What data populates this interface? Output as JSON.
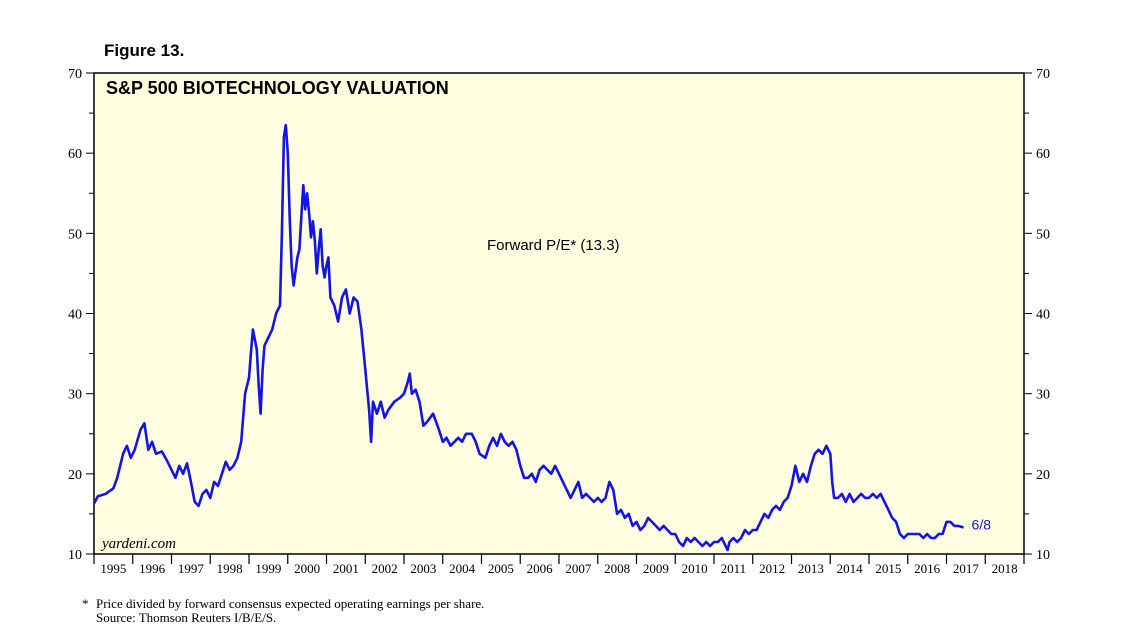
{
  "figure_label": "Figure 13.",
  "chart_data": {
    "type": "line",
    "title": "S&P 500 BIOTECHNOLOGY VALUATION",
    "series_label": "Forward P/E* (13.3)",
    "last_label": "6/8",
    "watermark": "yardeni.com",
    "ylim": [
      10,
      70
    ],
    "yticks": [
      10,
      20,
      30,
      40,
      50,
      60,
      70
    ],
    "ytick_labels": [
      "10",
      "20",
      "30",
      "40",
      "50",
      "60",
      "70"
    ],
    "xlim": [
      1995,
      2019
    ],
    "xtick_labels": [
      "1995",
      "1996",
      "1997",
      "1998",
      "1999",
      "2000",
      "2001",
      "2002",
      "2003",
      "2004",
      "2005",
      "2006",
      "2007",
      "2008",
      "2009",
      "2010",
      "2011",
      "2012",
      "2013",
      "2014",
      "2015",
      "2016",
      "2017",
      "2018"
    ],
    "colors": {
      "plot_bg": "#fffee0",
      "line": "#1414e6",
      "axis": "#000000"
    },
    "series": [
      {
        "name": "Forward P/E",
        "points": [
          [
            1995.0,
            16.3
          ],
          [
            1995.1,
            17.2
          ],
          [
            1995.3,
            17.5
          ],
          [
            1995.5,
            18.2
          ],
          [
            1995.6,
            19.5
          ],
          [
            1995.75,
            22.5
          ],
          [
            1995.85,
            23.5
          ],
          [
            1995.95,
            22.0
          ],
          [
            1996.05,
            23.0
          ],
          [
            1996.2,
            25.5
          ],
          [
            1996.3,
            26.3
          ],
          [
            1996.4,
            23.0
          ],
          [
            1996.5,
            24.0
          ],
          [
            1996.6,
            22.5
          ],
          [
            1996.75,
            22.8
          ],
          [
            1996.9,
            21.5
          ],
          [
            1997.0,
            20.5
          ],
          [
            1997.1,
            19.5
          ],
          [
            1997.2,
            21.0
          ],
          [
            1997.3,
            20.0
          ],
          [
            1997.4,
            21.3
          ],
          [
            1997.5,
            19.0
          ],
          [
            1997.6,
            16.5
          ],
          [
            1997.7,
            16.0
          ],
          [
            1997.8,
            17.5
          ],
          [
            1997.9,
            18.0
          ],
          [
            1998.0,
            17.0
          ],
          [
            1998.1,
            19.0
          ],
          [
            1998.2,
            18.5
          ],
          [
            1998.3,
            20.0
          ],
          [
            1998.4,
            21.5
          ],
          [
            1998.5,
            20.5
          ],
          [
            1998.6,
            21.0
          ],
          [
            1998.7,
            22.0
          ],
          [
            1998.8,
            24.0
          ],
          [
            1998.9,
            30.0
          ],
          [
            1999.0,
            32.0
          ],
          [
            1999.05,
            35.0
          ],
          [
            1999.1,
            38.0
          ],
          [
            1999.2,
            35.5
          ],
          [
            1999.25,
            31.0
          ],
          [
            1999.3,
            27.5
          ],
          [
            1999.35,
            33.0
          ],
          [
            1999.4,
            36.0
          ],
          [
            1999.5,
            37.0
          ],
          [
            1999.6,
            38.0
          ],
          [
            1999.7,
            40.0
          ],
          [
            1999.8,
            41.0
          ],
          [
            1999.85,
            50.0
          ],
          [
            1999.9,
            62.0
          ],
          [
            1999.95,
            63.5
          ],
          [
            2000.0,
            60.0
          ],
          [
            2000.05,
            52.0
          ],
          [
            2000.1,
            46.0
          ],
          [
            2000.15,
            43.5
          ],
          [
            2000.25,
            47.0
          ],
          [
            2000.3,
            48.0
          ],
          [
            2000.35,
            52.0
          ],
          [
            2000.4,
            56.0
          ],
          [
            2000.45,
            53.0
          ],
          [
            2000.5,
            55.0
          ],
          [
            2000.55,
            52.5
          ],
          [
            2000.6,
            49.5
          ],
          [
            2000.65,
            51.5
          ],
          [
            2000.7,
            49.0
          ],
          [
            2000.75,
            45.0
          ],
          [
            2000.8,
            48.0
          ],
          [
            2000.85,
            50.5
          ],
          [
            2000.9,
            46.0
          ],
          [
            2000.95,
            44.5
          ],
          [
            2001.0,
            46.0
          ],
          [
            2001.05,
            47.0
          ],
          [
            2001.1,
            42.0
          ],
          [
            2001.2,
            41.0
          ],
          [
            2001.3,
            39.0
          ],
          [
            2001.4,
            42.0
          ],
          [
            2001.5,
            43.0
          ],
          [
            2001.6,
            40.0
          ],
          [
            2001.7,
            42.0
          ],
          [
            2001.8,
            41.5
          ],
          [
            2001.9,
            38.0
          ],
          [
            2002.0,
            33.0
          ],
          [
            2002.1,
            28.0
          ],
          [
            2002.15,
            24.0
          ],
          [
            2002.2,
            29.0
          ],
          [
            2002.3,
            27.5
          ],
          [
            2002.4,
            29.0
          ],
          [
            2002.5,
            27.0
          ],
          [
            2002.6,
            28.0
          ],
          [
            2002.75,
            29.0
          ],
          [
            2002.9,
            29.5
          ],
          [
            2003.0,
            30.0
          ],
          [
            2003.1,
            31.5
          ],
          [
            2003.15,
            32.5
          ],
          [
            2003.2,
            30.0
          ],
          [
            2003.3,
            30.5
          ],
          [
            2003.4,
            29.0
          ],
          [
            2003.5,
            26.0
          ],
          [
            2003.6,
            26.5
          ],
          [
            2003.75,
            27.5
          ],
          [
            2003.9,
            25.5
          ],
          [
            2004.0,
            24.0
          ],
          [
            2004.1,
            24.5
          ],
          [
            2004.2,
            23.5
          ],
          [
            2004.4,
            24.5
          ],
          [
            2004.5,
            24.0
          ],
          [
            2004.6,
            25.0
          ],
          [
            2004.75,
            25.0
          ],
          [
            2004.85,
            24.0
          ],
          [
            2004.95,
            22.5
          ],
          [
            2005.1,
            22.0
          ],
          [
            2005.2,
            23.5
          ],
          [
            2005.3,
            24.5
          ],
          [
            2005.4,
            23.5
          ],
          [
            2005.5,
            25.0
          ],
          [
            2005.6,
            24.0
          ],
          [
            2005.7,
            23.5
          ],
          [
            2005.8,
            24.0
          ],
          [
            2005.9,
            23.0
          ],
          [
            2006.0,
            21.0
          ],
          [
            2006.1,
            19.5
          ],
          [
            2006.2,
            19.5
          ],
          [
            2006.3,
            20.0
          ],
          [
            2006.4,
            19.0
          ],
          [
            2006.5,
            20.5
          ],
          [
            2006.6,
            21.0
          ],
          [
            2006.7,
            20.5
          ],
          [
            2006.8,
            20.0
          ],
          [
            2006.9,
            21.0
          ],
          [
            2007.0,
            20.0
          ],
          [
            2007.1,
            19.0
          ],
          [
            2007.2,
            18.0
          ],
          [
            2007.3,
            17.0
          ],
          [
            2007.4,
            18.0
          ],
          [
            2007.5,
            19.0
          ],
          [
            2007.6,
            17.0
          ],
          [
            2007.7,
            17.5
          ],
          [
            2007.8,
            17.0
          ],
          [
            2007.9,
            16.5
          ],
          [
            2008.0,
            17.0
          ],
          [
            2008.1,
            16.5
          ],
          [
            2008.2,
            17.0
          ],
          [
            2008.3,
            19.0
          ],
          [
            2008.4,
            18.0
          ],
          [
            2008.5,
            15.0
          ],
          [
            2008.6,
            15.5
          ],
          [
            2008.7,
            14.5
          ],
          [
            2008.8,
            15.0
          ],
          [
            2008.9,
            13.5
          ],
          [
            2009.0,
            14.0
          ],
          [
            2009.1,
            13.0
          ],
          [
            2009.2,
            13.5
          ],
          [
            2009.3,
            14.5
          ],
          [
            2009.4,
            14.0
          ],
          [
            2009.5,
            13.5
          ],
          [
            2009.6,
            13.0
          ],
          [
            2009.7,
            13.5
          ],
          [
            2009.8,
            13.0
          ],
          [
            2009.9,
            12.5
          ],
          [
            2010.0,
            12.5
          ],
          [
            2010.1,
            11.5
          ],
          [
            2010.2,
            11.0
          ],
          [
            2010.3,
            12.0
          ],
          [
            2010.4,
            11.5
          ],
          [
            2010.5,
            12.0
          ],
          [
            2010.6,
            11.5
          ],
          [
            2010.7,
            11.0
          ],
          [
            2010.8,
            11.5
          ],
          [
            2010.9,
            11.0
          ],
          [
            2011.0,
            11.5
          ],
          [
            2011.1,
            11.5
          ],
          [
            2011.2,
            12.0
          ],
          [
            2011.3,
            11.0
          ],
          [
            2011.35,
            10.5
          ],
          [
            2011.4,
            11.5
          ],
          [
            2011.5,
            12.0
          ],
          [
            2011.6,
            11.5
          ],
          [
            2011.7,
            12.0
          ],
          [
            2011.8,
            13.0
          ],
          [
            2011.9,
            12.5
          ],
          [
            2012.0,
            13.0
          ],
          [
            2012.1,
            13.0
          ],
          [
            2012.2,
            14.0
          ],
          [
            2012.3,
            15.0
          ],
          [
            2012.4,
            14.5
          ],
          [
            2012.5,
            15.5
          ],
          [
            2012.6,
            16.0
          ],
          [
            2012.7,
            15.5
          ],
          [
            2012.8,
            16.5
          ],
          [
            2012.9,
            17.0
          ],
          [
            2013.0,
            18.5
          ],
          [
            2013.1,
            21.0
          ],
          [
            2013.2,
            19.0
          ],
          [
            2013.3,
            20.0
          ],
          [
            2013.4,
            19.0
          ],
          [
            2013.5,
            21.0
          ],
          [
            2013.6,
            22.5
          ],
          [
            2013.7,
            23.0
          ],
          [
            2013.8,
            22.5
          ],
          [
            2013.9,
            23.5
          ],
          [
            2014.0,
            22.5
          ],
          [
            2014.05,
            19.0
          ],
          [
            2014.1,
            17.0
          ],
          [
            2014.2,
            17.0
          ],
          [
            2014.3,
            17.5
          ],
          [
            2014.4,
            16.5
          ],
          [
            2014.5,
            17.5
          ],
          [
            2014.6,
            16.5
          ],
          [
            2014.7,
            17.0
          ],
          [
            2014.8,
            17.5
          ],
          [
            2014.9,
            17.0
          ],
          [
            2015.0,
            17.0
          ],
          [
            2015.1,
            17.5
          ],
          [
            2015.2,
            17.0
          ],
          [
            2015.3,
            17.5
          ],
          [
            2015.4,
            16.5
          ],
          [
            2015.5,
            15.5
          ],
          [
            2015.6,
            14.5
          ],
          [
            2015.7,
            14.0
          ],
          [
            2015.8,
            12.5
          ],
          [
            2015.9,
            12.0
          ],
          [
            2016.0,
            12.5
          ],
          [
            2016.1,
            12.5
          ],
          [
            2016.2,
            12.5
          ],
          [
            2016.3,
            12.5
          ],
          [
            2016.4,
            12.0
          ],
          [
            2016.5,
            12.5
          ],
          [
            2016.6,
            12.0
          ],
          [
            2016.7,
            12.0
          ],
          [
            2016.8,
            12.5
          ],
          [
            2016.9,
            12.5
          ],
          [
            2017.0,
            14.0
          ],
          [
            2017.1,
            14.0
          ],
          [
            2017.2,
            13.5
          ],
          [
            2017.3,
            13.5
          ],
          [
            2017.44,
            13.3
          ]
        ]
      }
    ]
  }
}
